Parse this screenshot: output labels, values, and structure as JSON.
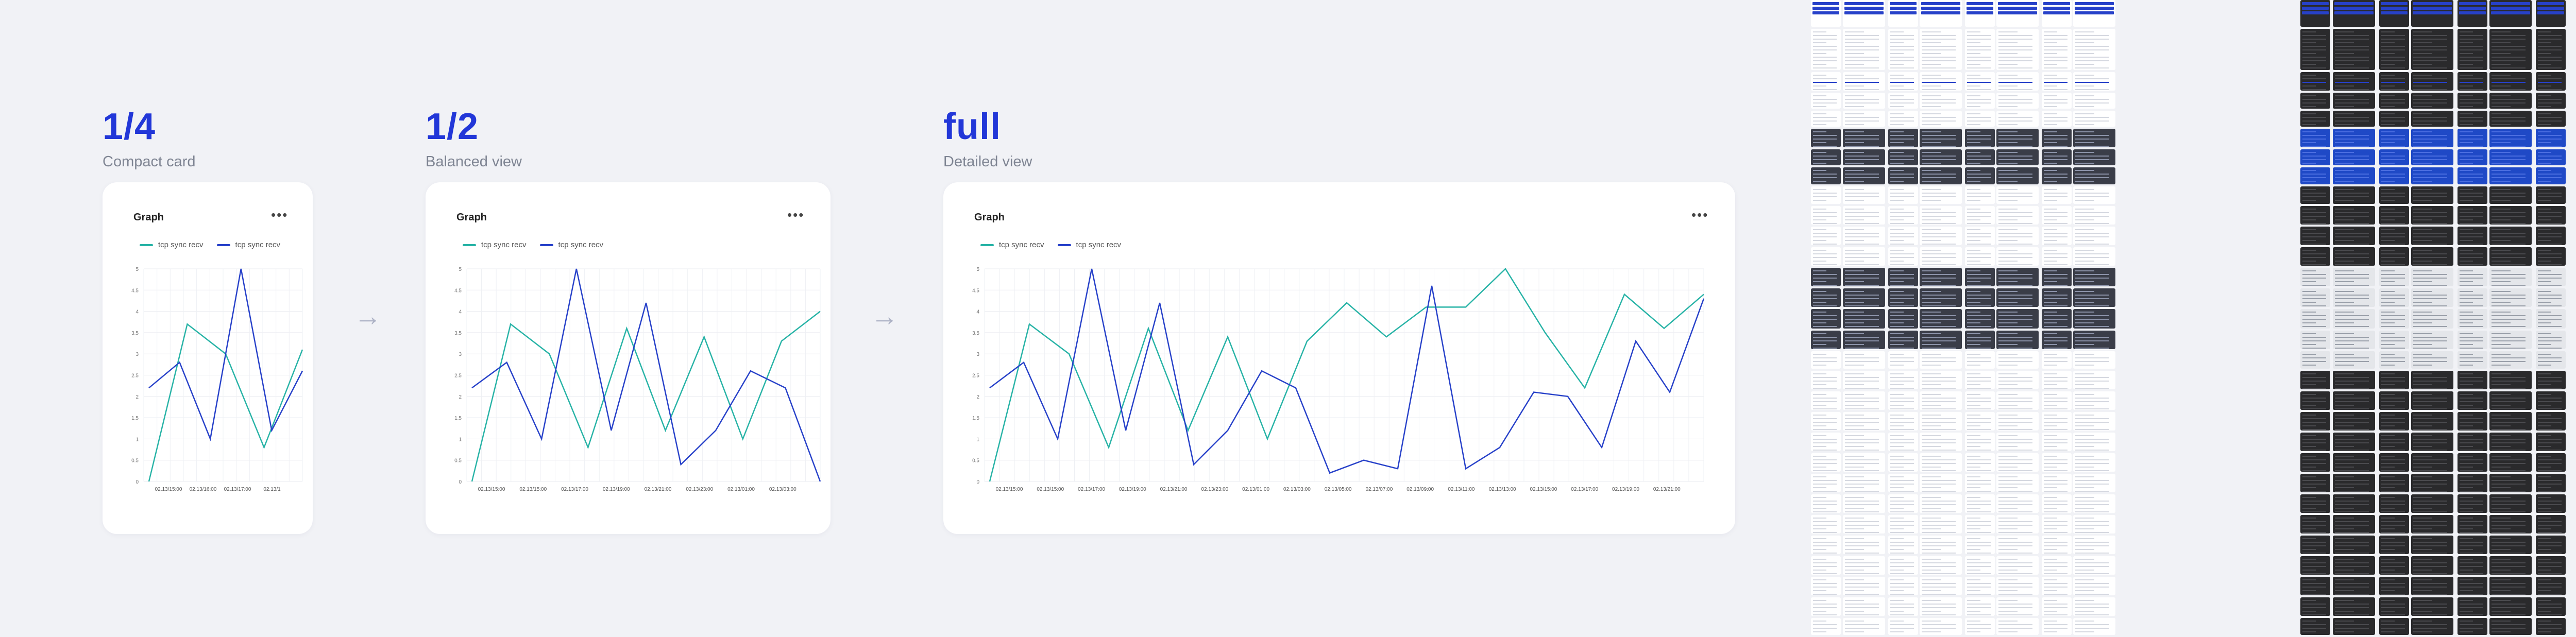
{
  "variants": [
    {
      "size": "1/4",
      "caption": "Compact card"
    },
    {
      "size": "1/2",
      "caption": "Balanced view"
    },
    {
      "size": "full",
      "caption": "Detailed view"
    }
  ],
  "card": {
    "title": "Graph",
    "menu_label": "•••",
    "legend": [
      {
        "name": "tcp sync recv",
        "color": "#27b3a6"
      },
      {
        "name": "tcp sync recv",
        "color": "#2741c9"
      }
    ]
  },
  "arrow_glyph": "→",
  "chart_data": [
    {
      "type": "line",
      "title": "Graph",
      "ylim": [
        0,
        5
      ],
      "y_ticks": [
        "0",
        "0.5",
        "1",
        "1.5",
        "2",
        "2.5",
        "3",
        "3.5",
        "4",
        "4.5",
        "5"
      ],
      "x_tick_labels": [
        "02.13/15:00",
        "02.13/16:00",
        "02.13/17:00",
        "02.13/1"
      ],
      "series": [
        {
          "name": "tcp sync recv",
          "color": "#27b3a6",
          "values": [
            0.0,
            3.7,
            3.0,
            0.8,
            3.1
          ]
        },
        {
          "name": "tcp sync recv",
          "color": "#2741c9",
          "values": [
            2.2,
            2.8,
            1.0,
            5.0,
            1.2,
            2.6
          ]
        }
      ]
    },
    {
      "type": "line",
      "title": "Graph",
      "ylim": [
        0,
        5
      ],
      "y_ticks": [
        "0",
        "0.5",
        "1",
        "1.5",
        "2",
        "2.5",
        "3",
        "3.5",
        "4",
        "4.5",
        "5"
      ],
      "x_tick_labels": [
        "02.13/15:00",
        "02.13/15:00",
        "02.13/17:00",
        "02.13/19:00",
        "02.13/21:00",
        "02.13/23:00",
        "02.13/01:00",
        "02.13/03:00"
      ],
      "series": [
        {
          "name": "tcp sync recv",
          "color": "#27b3a6",
          "values": [
            0.0,
            3.7,
            3.0,
            0.8,
            3.6,
            1.2,
            3.4,
            1.0,
            3.3,
            4.0
          ]
        },
        {
          "name": "tcp sync recv",
          "color": "#2741c9",
          "values": [
            2.2,
            2.8,
            1.0,
            5.0,
            1.2,
            4.2,
            0.4,
            1.2,
            2.6,
            2.2,
            0.0
          ]
        }
      ]
    },
    {
      "type": "line",
      "title": "Graph",
      "ylim": [
        0,
        5
      ],
      "y_ticks": [
        "0",
        "0.5",
        "1",
        "1.5",
        "2",
        "2.5",
        "3",
        "3.5",
        "4",
        "4.5",
        "5"
      ],
      "x_tick_labels": [
        "02.13/15:00",
        "02.13/15:00",
        "02.13/17:00",
        "02.13/19:00",
        "02.13/21:00",
        "02.13/23:00",
        "02.13/01:00",
        "02.13/03:00",
        "02.13/05:00",
        "02.13/07:00",
        "02.13/09:00",
        "02.13/11:00",
        "02.13/13:00",
        "02.13/15:00",
        "02.13/17:00",
        "02.13/19:00",
        "02.13/21:00"
      ],
      "series": [
        {
          "name": "tcp sync recv",
          "color": "#27b3a6",
          "values": [
            0.0,
            3.7,
            3.0,
            0.8,
            3.6,
            1.2,
            3.4,
            1.0,
            3.3,
            4.2,
            3.4,
            4.1,
            4.1,
            5.0,
            3.5,
            2.2,
            4.4,
            3.6,
            4.4
          ]
        },
        {
          "name": "tcp sync recv",
          "color": "#2741c9",
          "values": [
            2.2,
            2.8,
            1.0,
            5.0,
            1.2,
            4.2,
            0.4,
            1.2,
            2.6,
            2.2,
            0.2,
            0.5,
            0.3,
            4.6,
            0.3,
            0.8,
            2.1,
            2.0,
            0.8,
            3.3,
            2.1,
            4.3
          ]
        }
      ]
    }
  ]
}
